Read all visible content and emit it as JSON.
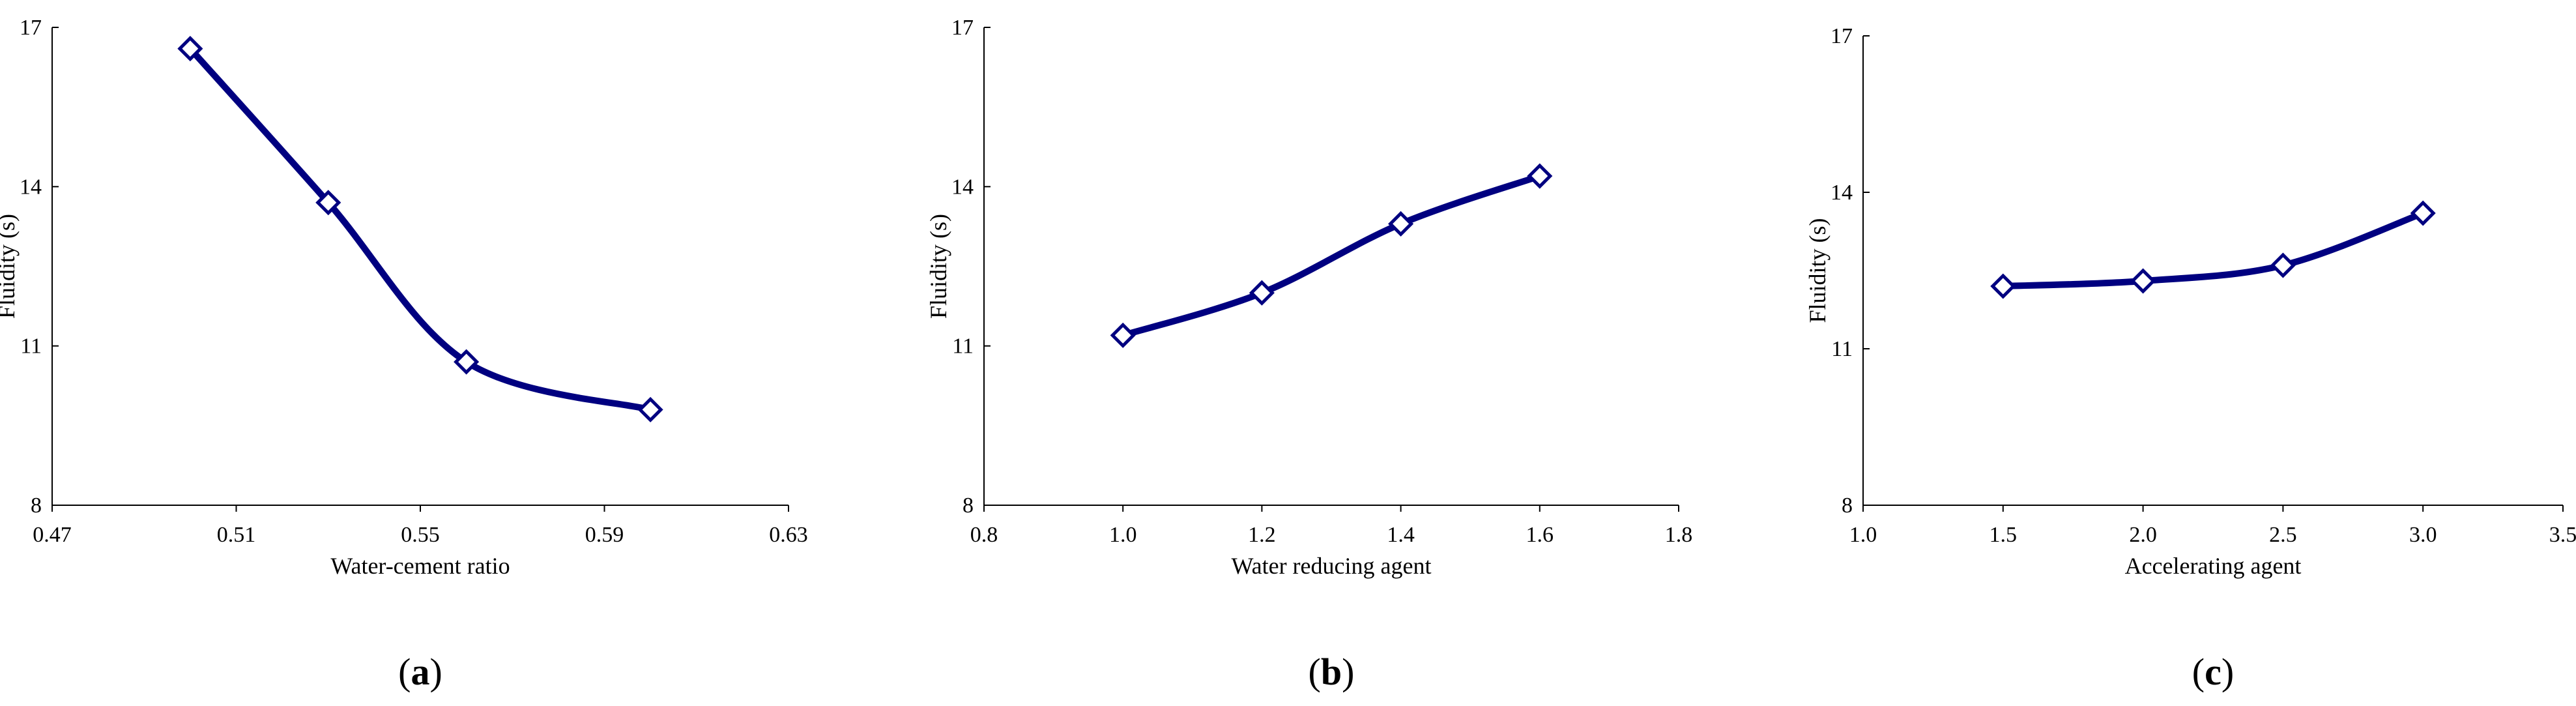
{
  "series_color": "#000080",
  "chart_data": [
    {
      "type": "line",
      "panel_label": "a",
      "xlabel": "Water-cement ratio",
      "ylabel": "Fluidity  (s)",
      "x": [
        0.5,
        0.53,
        0.56,
        0.6
      ],
      "series": [
        {
          "values": [
            16.6,
            13.7,
            10.7,
            9.8
          ]
        }
      ],
      "xlim": [
        0.47,
        0.63
      ],
      "xticks": [
        0.47,
        0.51,
        0.55,
        0.59,
        0.63
      ],
      "xtick_labels": [
        "0.47",
        "0.51",
        "0.55",
        "0.59",
        "0.63"
      ],
      "ylim": [
        8,
        17
      ],
      "yticks": [
        8,
        11,
        14,
        17
      ],
      "ytick_labels": [
        "8",
        "11",
        "14",
        "17"
      ],
      "grid": false,
      "marker": "diamond"
    },
    {
      "type": "line",
      "panel_label": "b",
      "xlabel": "Water reducing  agent",
      "ylabel": "Fluidity  (s)",
      "x": [
        1.0,
        1.2,
        1.4,
        1.6
      ],
      "series": [
        {
          "values": [
            11.2,
            12.0,
            13.3,
            14.2
          ]
        }
      ],
      "xlim": [
        0.8,
        1.8
      ],
      "xticks": [
        0.8,
        1.0,
        1.2,
        1.4,
        1.6,
        1.8
      ],
      "xtick_labels": [
        "0.8",
        "1.0",
        "1.2",
        "1.4",
        "1.6",
        "1.8"
      ],
      "ylim": [
        8,
        17
      ],
      "yticks": [
        8,
        11,
        14,
        17
      ],
      "ytick_labels": [
        "8",
        "11",
        "14",
        "17"
      ],
      "grid": false,
      "marker": "diamond"
    },
    {
      "type": "line",
      "panel_label": "c",
      "xlabel": "Accelerating  agent",
      "ylabel": "Fluidity  (s)",
      "x": [
        1.5,
        2.0,
        2.5,
        3.0
      ],
      "series": [
        {
          "values": [
            12.2,
            12.3,
            12.6,
            13.6
          ]
        }
      ],
      "xlim": [
        1.0,
        3.5
      ],
      "xticks": [
        1.0,
        1.5,
        2.0,
        2.5,
        3.0,
        3.5
      ],
      "xtick_labels": [
        "1.0",
        "1.5",
        "2.0",
        "2.5",
        "3.0",
        "3.5"
      ],
      "ylim": [
        8,
        17
      ],
      "yticks": [
        8,
        11,
        14,
        17
      ],
      "ytick_labels": [
        "8",
        "11",
        "14",
        "17"
      ],
      "grid": false,
      "marker": "diamond"
    }
  ]
}
